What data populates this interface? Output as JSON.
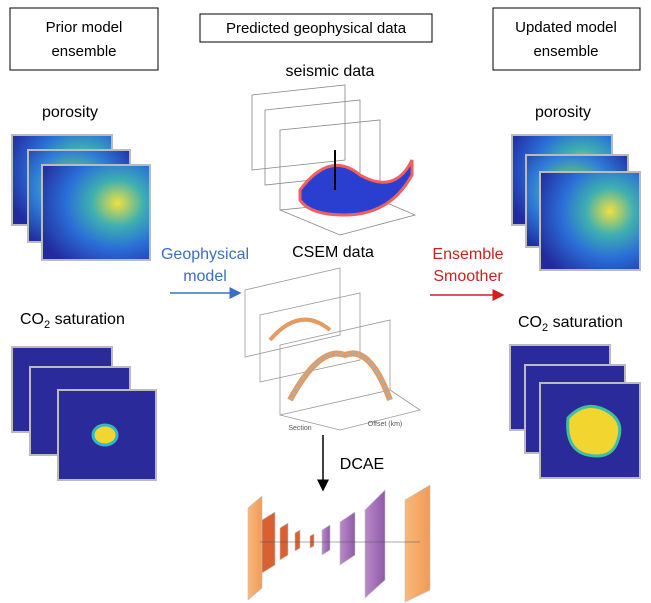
{
  "prior": {
    "title_lines": [
      "Prior model",
      "ensemble"
    ],
    "porosity": "porosity",
    "co2": {
      "main": "CO",
      "sub": "2",
      "rest": " saturation"
    }
  },
  "predicted": {
    "title": "Predicted geophysical data",
    "seismic": "seismic data",
    "csem": "CSEM data",
    "csem_axes": [
      "Section",
      "Offset (km)"
    ],
    "dcae": "DCAE"
  },
  "updated": {
    "title_lines": [
      "Updated model",
      "ensemble"
    ],
    "porosity": "porosity",
    "co2": {
      "main": "CO",
      "sub": "2",
      "rest": " saturation"
    }
  },
  "arrows": {
    "left": [
      "Geophysical",
      "model"
    ],
    "right": [
      "Ensemble",
      "Smoother"
    ]
  }
}
